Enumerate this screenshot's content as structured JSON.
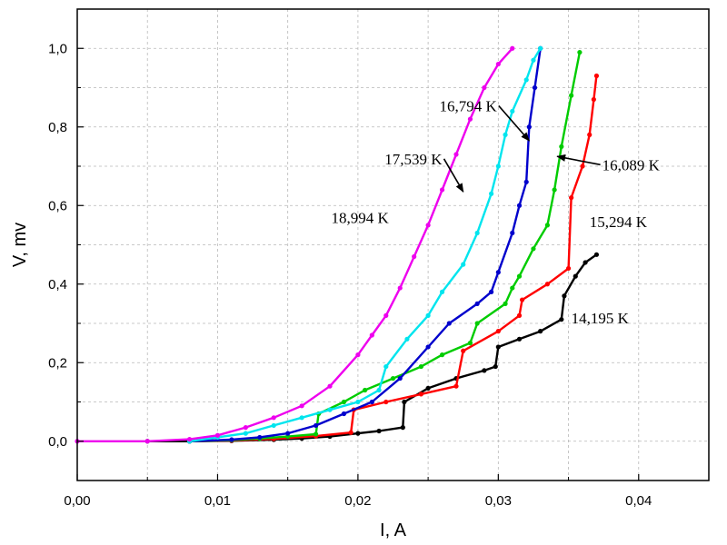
{
  "chart_data": {
    "type": "scatter",
    "title": "",
    "xlabel": "I, A",
    "ylabel": "V, mv",
    "xlim": [
      0.0,
      0.045
    ],
    "ylim": [
      -0.1,
      1.1
    ],
    "xticks": [
      0.0,
      0.01,
      0.02,
      0.03,
      0.04
    ],
    "xtick_labels": [
      "0,00",
      "0,01",
      "0,02",
      "0,03",
      "0,04"
    ],
    "yticks": [
      0.0,
      0.2,
      0.4,
      0.6,
      0.8,
      1.0
    ],
    "ytick_labels": [
      "0,0",
      "0,2",
      "0,4",
      "0,6",
      "0,8",
      "1,0"
    ],
    "grid": true,
    "series": [
      {
        "name": "14,195 K",
        "color": "#000000",
        "x": [
          0.005,
          0.008,
          0.011,
          0.014,
          0.016,
          0.018,
          0.02,
          0.0215,
          0.0232,
          0.0233,
          0.025,
          0.027,
          0.029,
          0.0298,
          0.03,
          0.0315,
          0.033,
          0.0345,
          0.0347,
          0.0355,
          0.0362,
          0.037
        ],
        "y": [
          0.0,
          0.0,
          0.001,
          0.004,
          0.007,
          0.012,
          0.02,
          0.026,
          0.035,
          0.1,
          0.135,
          0.16,
          0.18,
          0.19,
          0.24,
          0.26,
          0.28,
          0.31,
          0.37,
          0.42,
          0.455,
          0.475
        ]
      },
      {
        "name": "15,294 K",
        "color": "#ff0000",
        "x": [
          0.008,
          0.011,
          0.014,
          0.017,
          0.0195,
          0.0197,
          0.022,
          0.0245,
          0.027,
          0.0275,
          0.03,
          0.0315,
          0.0317,
          0.0335,
          0.035,
          0.0352,
          0.036,
          0.0365,
          0.0368,
          0.037
        ],
        "y": [
          0.0,
          0.002,
          0.006,
          0.013,
          0.022,
          0.08,
          0.1,
          0.12,
          0.14,
          0.23,
          0.28,
          0.32,
          0.36,
          0.4,
          0.44,
          0.62,
          0.7,
          0.78,
          0.87,
          0.93
        ]
      },
      {
        "name": "16,089 K",
        "color": "#00cc00",
        "x": [
          0.008,
          0.011,
          0.013,
          0.015,
          0.017,
          0.0172,
          0.019,
          0.0205,
          0.0225,
          0.0245,
          0.026,
          0.028,
          0.0285,
          0.0305,
          0.031,
          0.0315,
          0.0325,
          0.0335,
          0.034,
          0.0345,
          0.0352,
          0.0358
        ],
        "y": [
          0.0,
          0.003,
          0.007,
          0.012,
          0.018,
          0.07,
          0.1,
          0.13,
          0.16,
          0.19,
          0.22,
          0.25,
          0.3,
          0.35,
          0.39,
          0.42,
          0.49,
          0.55,
          0.64,
          0.75,
          0.88,
          0.99
        ]
      },
      {
        "name": "16,794 K",
        "color": "#0000cc",
        "x": [
          0.008,
          0.011,
          0.013,
          0.015,
          0.017,
          0.019,
          0.021,
          0.023,
          0.025,
          0.0265,
          0.0285,
          0.0295,
          0.03,
          0.031,
          0.0315,
          0.032,
          0.0322,
          0.0326,
          0.033
        ],
        "y": [
          0.0,
          0.004,
          0.01,
          0.02,
          0.04,
          0.07,
          0.1,
          0.16,
          0.24,
          0.3,
          0.35,
          0.38,
          0.43,
          0.53,
          0.6,
          0.66,
          0.8,
          0.9,
          1.0
        ]
      },
      {
        "name": "17,539 K",
        "color": "#00e5ee",
        "x": [
          0.008,
          0.01,
          0.012,
          0.014,
          0.016,
          0.018,
          0.02,
          0.0215,
          0.022,
          0.0235,
          0.025,
          0.026,
          0.0275,
          0.0285,
          0.0295,
          0.03,
          0.0305,
          0.031,
          0.032,
          0.0325,
          0.033
        ],
        "y": [
          0.0,
          0.01,
          0.02,
          0.04,
          0.06,
          0.08,
          0.1,
          0.13,
          0.19,
          0.26,
          0.32,
          0.38,
          0.45,
          0.53,
          0.63,
          0.7,
          0.78,
          0.84,
          0.92,
          0.97,
          1.0
        ]
      },
      {
        "name": "18,994 K",
        "color": "#ee00ee",
        "x": [
          0.0,
          0.005,
          0.008,
          0.01,
          0.012,
          0.014,
          0.016,
          0.018,
          0.02,
          0.021,
          0.022,
          0.023,
          0.024,
          0.025,
          0.026,
          0.027,
          0.028,
          0.029,
          0.03,
          0.031
        ],
        "y": [
          0.0,
          0.0,
          0.005,
          0.015,
          0.035,
          0.06,
          0.09,
          0.14,
          0.22,
          0.27,
          0.32,
          0.39,
          0.47,
          0.55,
          0.64,
          0.73,
          0.82,
          0.9,
          0.96,
          1.0
        ]
      }
    ],
    "annotations": [
      {
        "text": "14,195 K",
        "x": 0.0352,
        "y": 0.3,
        "series": "14,195 K"
      },
      {
        "text": "15,294 K",
        "x": 0.0365,
        "y": 0.545,
        "series": "15,294 K"
      },
      {
        "text": "16,089 K",
        "x": 0.0374,
        "y": 0.69,
        "series": "16,089 K",
        "arrow_to": [
          0.0342,
          0.725
        ]
      },
      {
        "text": "16,794 K",
        "x": 0.0258,
        "y": 0.84,
        "series": "16,794 K",
        "arrow_to": [
          0.0322,
          0.765
        ]
      },
      {
        "text": "17,539 K",
        "x": 0.0219,
        "y": 0.705,
        "series": "17,539 K",
        "arrow_to": [
          0.0275,
          0.635
        ]
      },
      {
        "text": "18,994 K",
        "x": 0.0181,
        "y": 0.555,
        "series": "18,994 K"
      }
    ]
  }
}
